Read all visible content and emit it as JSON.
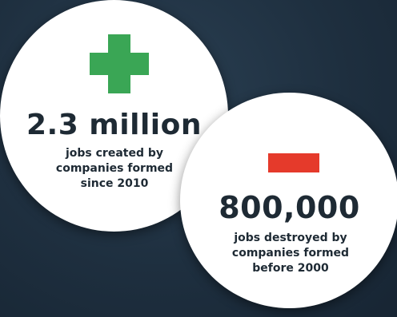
{
  "stats": [
    {
      "sign": "plus",
      "color": "#3aa655",
      "icon": "plus-icon",
      "number": "2.3 million",
      "caption_lines": [
        "jobs created by",
        "companies formed",
        "since 2010"
      ]
    },
    {
      "sign": "minus",
      "color": "#e53a2b",
      "icon": "minus-icon",
      "number": "800,000",
      "caption_lines": [
        "jobs destroyed by",
        "companies formed",
        "before 2000"
      ]
    }
  ]
}
